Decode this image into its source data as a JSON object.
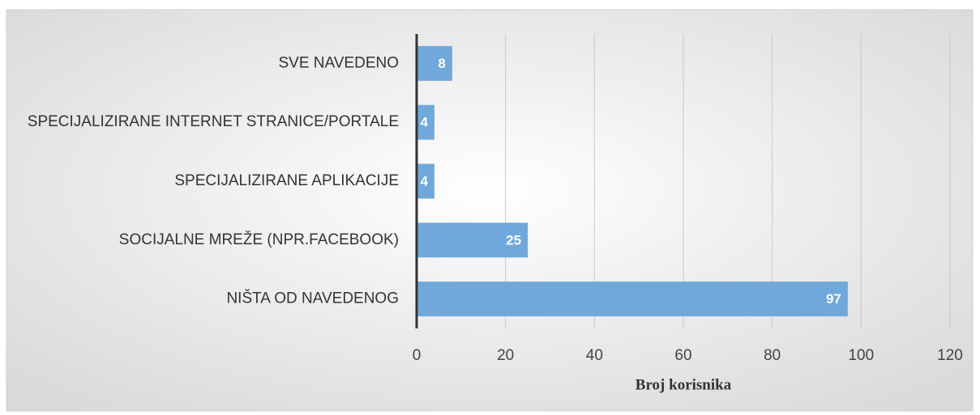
{
  "chart_data": {
    "type": "barh",
    "categories": [
      "SVE NAVEDENO",
      "SPECIJALIZIRANE INTERNET STRANICE/PORTALE",
      "SPECIJALIZIRANE APLIKACIJE",
      "SOCIJALNE MREŽE (NPR.FACEBOOK)",
      "NIŠTA OD NAVEDENOG"
    ],
    "values": [
      8,
      4,
      4,
      25,
      97
    ],
    "color": "#6fa8dc",
    "xlabel": "Broj korisnika",
    "xlim": [
      0,
      120
    ],
    "xticks": [
      0,
      20,
      40,
      60,
      80,
      100,
      120
    ],
    "grid": true
  }
}
